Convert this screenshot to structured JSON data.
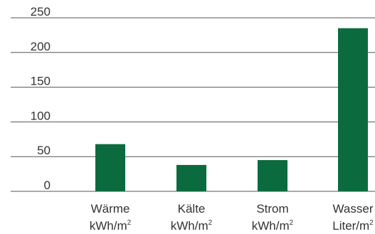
{
  "chart_data": {
    "type": "bar",
    "categories": [
      "Wärme",
      "Kälte",
      "Strom",
      "Wasser"
    ],
    "units": [
      {
        "base": "kWh/m",
        "sup": "2"
      },
      {
        "base": "kWh/m",
        "sup": "2"
      },
      {
        "base": "kWh/m",
        "sup": "2"
      },
      {
        "base": "Liter/m",
        "sup": "2"
      }
    ],
    "values": [
      68,
      38,
      45,
      235
    ],
    "ylim": [
      0,
      250
    ],
    "yticks": [
      0,
      50,
      100,
      150,
      200,
      250
    ],
    "grid": true,
    "title": "",
    "xlabel": "",
    "ylabel": "",
    "colors": {
      "bar": "#0b6b3f",
      "grid": "#555555",
      "text": "#333333"
    }
  }
}
